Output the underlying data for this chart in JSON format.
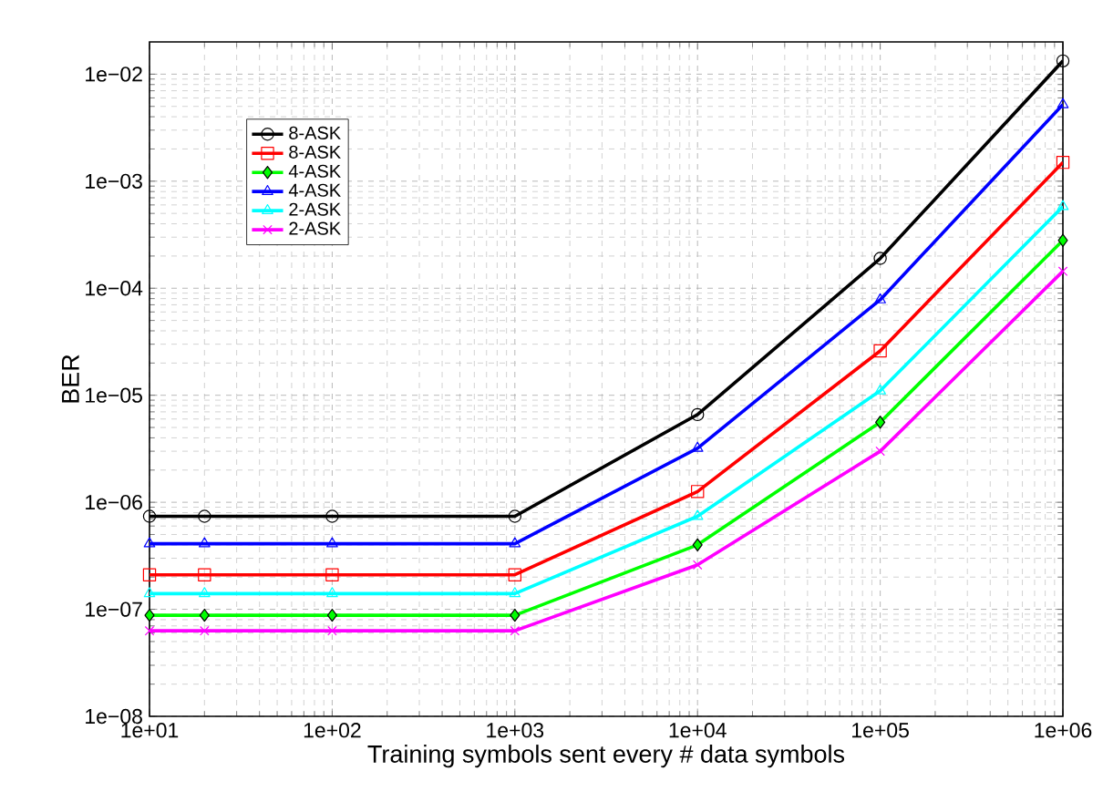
{
  "chart_data": {
    "type": "line",
    "xlabel": "Training symbols sent every # data symbols",
    "ylabel": "BER",
    "log": "xy",
    "grid": true,
    "legend": "top left",
    "line_style": "solid",
    "xlim": [
      10,
      1000000
    ],
    "ylim": [
      1e-08,
      0.02
    ],
    "xticks": [
      {
        "value": 10,
        "label": "1e+01"
      },
      {
        "value": 100,
        "label": "1e+02"
      },
      {
        "value": 1000,
        "label": "1e+03"
      },
      {
        "value": 10000,
        "label": "1e+04"
      },
      {
        "value": 100000,
        "label": "1e+05"
      },
      {
        "value": 1000000,
        "label": "1e+06"
      }
    ],
    "yticks": [
      {
        "value": 1e-08,
        "label": "1e−08"
      },
      {
        "value": 1e-07,
        "label": "1e−07"
      },
      {
        "value": 1e-06,
        "label": "1e−06"
      },
      {
        "value": 1e-05,
        "label": "1e−05"
      },
      {
        "value": 0.0001,
        "label": "1e−04"
      },
      {
        "value": 0.001,
        "label": "1e−03"
      },
      {
        "value": 0.01,
        "label": "1e−02"
      }
    ],
    "x": [
      10,
      20,
      100,
      1000,
      10000,
      100000,
      1000000
    ],
    "series": [
      {
        "name": "8-ASK",
        "color": "#000000",
        "marker": "circle",
        "values": [
          7.4e-07,
          7.4e-07,
          7.4e-07,
          7.4e-07,
          6.6e-06,
          0.00019,
          0.0133
        ]
      },
      {
        "name": "8-ASK",
        "color": "#ff0000",
        "marker": "square",
        "values": [
          2.1e-07,
          2.1e-07,
          2.1e-07,
          2.1e-07,
          1.26e-06,
          2.6e-05,
          0.0015
        ]
      },
      {
        "name": "4-ASK",
        "color": "#00ff00",
        "marker": "diamond",
        "values": [
          8.8e-08,
          8.8e-08,
          8.8e-08,
          8.8e-08,
          4e-07,
          5.6e-06,
          0.00028
        ]
      },
      {
        "name": "4-ASK",
        "color": "#0000ff",
        "marker": "triangle",
        "values": [
          4.1e-07,
          4.1e-07,
          4.1e-07,
          4.1e-07,
          3.2e-06,
          7.8e-05,
          0.0052
        ]
      },
      {
        "name": "2-ASK",
        "color": "#00ffff",
        "marker": "triangle",
        "values": [
          1.4e-07,
          1.4e-07,
          1.4e-07,
          1.4e-07,
          7.4e-07,
          1.1e-05,
          0.00058
        ]
      },
      {
        "name": "2-ASK",
        "color": "#ff00ff",
        "marker": "cross",
        "values": [
          6.3e-08,
          6.3e-08,
          6.3e-08,
          6.3e-08,
          2.6e-07,
          3e-06,
          0.000144
        ]
      }
    ]
  }
}
